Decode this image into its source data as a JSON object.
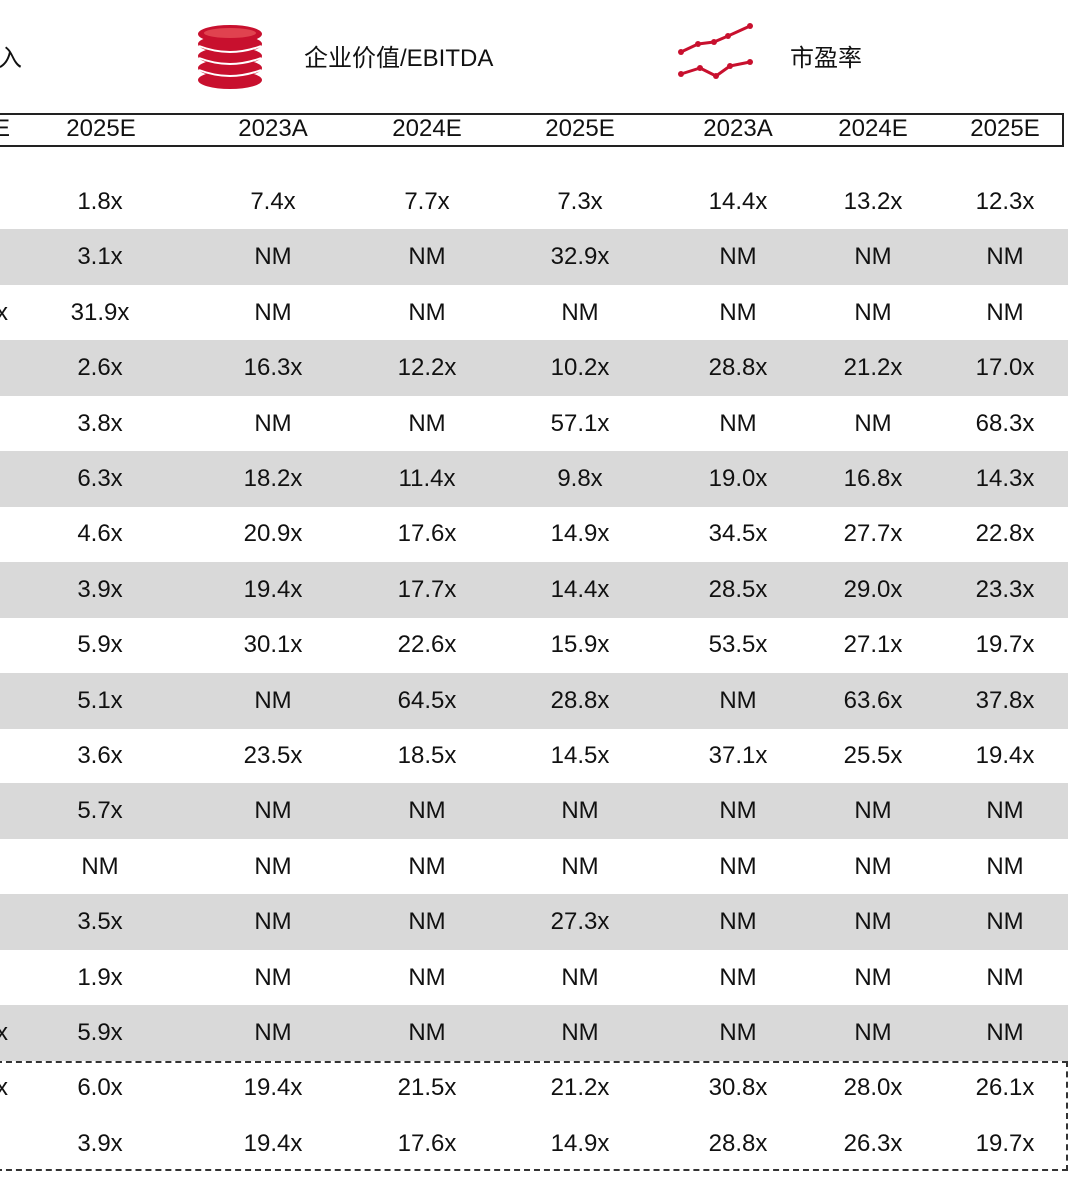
{
  "header": {
    "col1_fragment": "入",
    "col2_label": "企业价值/EBITDA",
    "col3_label": "市盈率",
    "icons": [
      "coin-stack-icon",
      "line-trend-icon"
    ],
    "accent_color": "#c8102e"
  },
  "years": [
    "E",
    "2025E",
    "2023A",
    "2024E",
    "2025E",
    "2023A",
    "2024E",
    "2025E"
  ],
  "rows": [
    {
      "lead": "",
      "cells": [
        "1.8x",
        "7.4x",
        "7.7x",
        "7.3x",
        "14.4x",
        "13.2x",
        "12.3x"
      ]
    },
    {
      "lead": "",
      "cells": [
        "3.1x",
        "NM",
        "NM",
        "32.9x",
        "NM",
        "NM",
        "NM"
      ]
    },
    {
      "lead": "x",
      "cells": [
        "31.9x",
        "NM",
        "NM",
        "NM",
        "NM",
        "NM",
        "NM"
      ]
    },
    {
      "lead": "",
      "cells": [
        "2.6x",
        "16.3x",
        "12.2x",
        "10.2x",
        "28.8x",
        "21.2x",
        "17.0x"
      ]
    },
    {
      "lead": "",
      "cells": [
        "3.8x",
        "NM",
        "NM",
        "57.1x",
        "NM",
        "NM",
        "68.3x"
      ]
    },
    {
      "lead": "",
      "cells": [
        "6.3x",
        "18.2x",
        "11.4x",
        "9.8x",
        "19.0x",
        "16.8x",
        "14.3x"
      ]
    },
    {
      "lead": "",
      "cells": [
        "4.6x",
        "20.9x",
        "17.6x",
        "14.9x",
        "34.5x",
        "27.7x",
        "22.8x"
      ]
    },
    {
      "lead": "",
      "cells": [
        "3.9x",
        "19.4x",
        "17.7x",
        "14.4x",
        "28.5x",
        "29.0x",
        "23.3x"
      ]
    },
    {
      "lead": "",
      "cells": [
        "5.9x",
        "30.1x",
        "22.6x",
        "15.9x",
        "53.5x",
        "27.1x",
        "19.7x"
      ]
    },
    {
      "lead": "",
      "cells": [
        "5.1x",
        "NM",
        "64.5x",
        "28.8x",
        "NM",
        "63.6x",
        "37.8x"
      ]
    },
    {
      "lead": "",
      "cells": [
        "3.6x",
        "23.5x",
        "18.5x",
        "14.5x",
        "37.1x",
        "25.5x",
        "19.4x"
      ]
    },
    {
      "lead": "",
      "cells": [
        "5.7x",
        "NM",
        "NM",
        "NM",
        "NM",
        "NM",
        "NM"
      ]
    },
    {
      "lead": "",
      "cells": [
        "NM",
        "NM",
        "NM",
        "NM",
        "NM",
        "NM",
        "NM"
      ]
    },
    {
      "lead": "",
      "cells": [
        "3.5x",
        "NM",
        "NM",
        "27.3x",
        "NM",
        "NM",
        "NM"
      ]
    },
    {
      "lead": "",
      "cells": [
        "1.9x",
        "NM",
        "NM",
        "NM",
        "NM",
        "NM",
        "NM"
      ]
    },
    {
      "lead": "x",
      "cells": [
        "5.9x",
        "NM",
        "NM",
        "NM",
        "NM",
        "NM",
        "NM"
      ]
    }
  ],
  "summary_rows": [
    {
      "lead": "x",
      "cells": [
        "6.0x",
        "19.4x",
        "21.5x",
        "21.2x",
        "30.8x",
        "28.0x",
        "26.1x"
      ]
    },
    {
      "lead": "",
      "cells": [
        "3.9x",
        "19.4x",
        "17.6x",
        "14.9x",
        "28.8x",
        "26.3x",
        "19.7x"
      ]
    }
  ]
}
